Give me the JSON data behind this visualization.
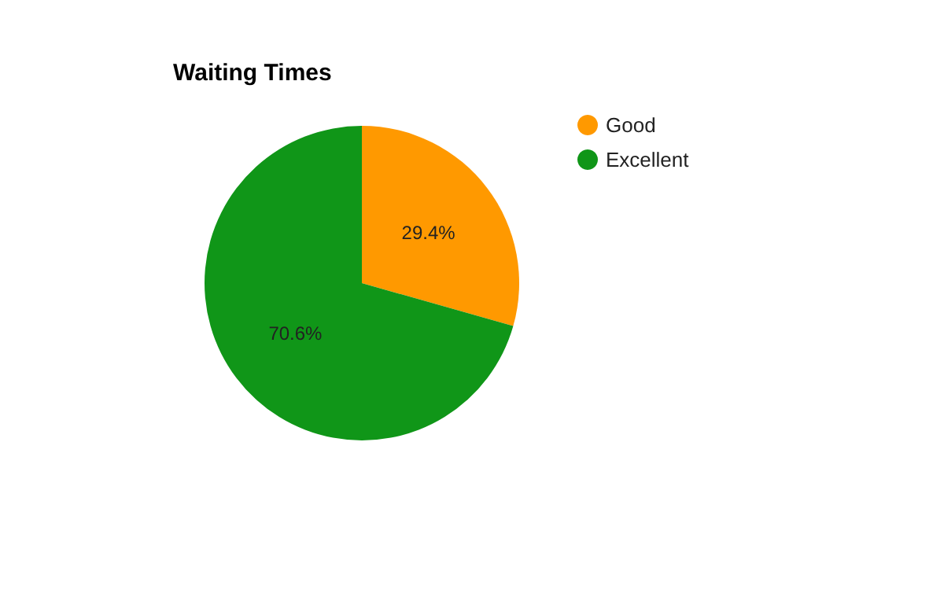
{
  "chart_data": {
    "type": "pie",
    "title": "Waiting Times",
    "categories": [
      "Good",
      "Excellent"
    ],
    "values": [
      29.4,
      70.6
    ],
    "colors": [
      "#ff9900",
      "#109618"
    ],
    "value_labels": [
      "29.4%",
      "70.6%"
    ],
    "legend": "top right"
  }
}
